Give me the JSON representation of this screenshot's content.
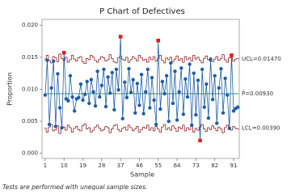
{
  "chart_data": {
    "type": "p-chart",
    "title": "P Chart of Defectives",
    "x_label": "Sample",
    "y_label": "Proportion",
    "footnote": "Tests are performed with unequal sample sizes.",
    "x": [
      1,
      2,
      3,
      4,
      5,
      6,
      7,
      8,
      9,
      10,
      11,
      12,
      13,
      14,
      15,
      16,
      17,
      18,
      19,
      20,
      21,
      22,
      23,
      24,
      25,
      26,
      27,
      28,
      29,
      30,
      31,
      32,
      33,
      34,
      35,
      36,
      37,
      38,
      39,
      40,
      41,
      42,
      43,
      44,
      45,
      46,
      47,
      48,
      49,
      50,
      51,
      52,
      53,
      54,
      55,
      56,
      57,
      58,
      59,
      60,
      61,
      62,
      63,
      64,
      65,
      66,
      67,
      68,
      69,
      70,
      71,
      72,
      73,
      74,
      75,
      76,
      77,
      78,
      79,
      80,
      81,
      82,
      83,
      84,
      85,
      86,
      87,
      88,
      89,
      90,
      91,
      92,
      93
    ],
    "values": [
      0.0091,
      0.0145,
      0.0045,
      0.0102,
      0.0144,
      0.0042,
      0.0124,
      0.0071,
      0.004,
      0.0157,
      0.0085,
      0.0082,
      0.0121,
      0.0088,
      0.0066,
      0.0085,
      0.0087,
      0.0108,
      0.0083,
      0.0092,
      0.0112,
      0.0078,
      0.0115,
      0.0096,
      0.0074,
      0.0128,
      0.0088,
      0.0106,
      0.0131,
      0.0073,
      0.0119,
      0.0094,
      0.0126,
      0.0068,
      0.0131,
      0.0099,
      0.0182,
      0.0054,
      0.0111,
      0.0087,
      0.0132,
      0.0095,
      0.0115,
      0.0063,
      0.0109,
      0.0075,
      0.0123,
      0.0062,
      0.0096,
      0.0131,
      0.0071,
      0.0118,
      0.0083,
      0.0045,
      0.0176,
      0.0069,
      0.0112,
      0.0093,
      0.0121,
      0.005,
      0.0141,
      0.0078,
      0.0128,
      0.0052,
      0.0096,
      0.0133,
      0.0061,
      0.0116,
      0.0088,
      0.0139,
      0.0044,
      0.0125,
      0.006,
      0.0114,
      0.002,
      0.0131,
      0.0072,
      0.0108,
      0.0055,
      0.0146,
      0.0084,
      0.0121,
      0.0047,
      0.0102,
      0.0132,
      0.0063,
      0.0117,
      0.0091,
      0.0039,
      0.0153,
      0.0066,
      0.007,
      0.0072
    ],
    "ucl": [
      0.0147,
      0.0153,
      0.0145,
      0.0141,
      0.0151,
      0.0149,
      0.0143,
      0.0155,
      0.0148,
      0.0145,
      0.015,
      0.0142,
      0.0146,
      0.0153,
      0.0147,
      0.0144,
      0.0149,
      0.0151,
      0.0143,
      0.014,
      0.0148,
      0.0146,
      0.0153,
      0.015,
      0.0145,
      0.0142,
      0.0147,
      0.0151,
      0.0149,
      0.0144,
      0.0146,
      0.0154,
      0.0148,
      0.0143,
      0.0141,
      0.0149,
      0.0152,
      0.0147,
      0.0145,
      0.015,
      0.0142,
      0.0146,
      0.0151,
      0.0148,
      0.0144,
      0.0153,
      0.0149,
      0.0145,
      0.0147,
      0.0142,
      0.015,
      0.0146,
      0.0151,
      0.0144,
      0.0148,
      0.0153,
      0.0145,
      0.0141,
      0.0149,
      0.0146,
      0.015,
      0.0143,
      0.0147,
      0.0152,
      0.0145,
      0.0148,
      0.0142,
      0.0151,
      0.0146,
      0.0149,
      0.0144,
      0.0153,
      0.0147,
      0.015,
      0.0145,
      0.0141,
      0.0148,
      0.0152,
      0.0146,
      0.0149,
      0.0143,
      0.0147,
      0.0151,
      0.0145,
      0.0148,
      0.0154,
      0.0146,
      0.0142,
      0.0149,
      0.015,
      0.0144,
      0.0147,
      0.0148
    ],
    "lcl": [
      0.0039,
      0.0033,
      0.0041,
      0.0045,
      0.0035,
      0.0037,
      0.0043,
      0.0031,
      0.0038,
      0.0041,
      0.0036,
      0.0044,
      0.004,
      0.0033,
      0.0039,
      0.0042,
      0.0037,
      0.0035,
      0.0043,
      0.0046,
      0.0038,
      0.004,
      0.0033,
      0.0036,
      0.0041,
      0.0044,
      0.0039,
      0.0035,
      0.0037,
      0.0042,
      0.004,
      0.0032,
      0.0038,
      0.0043,
      0.0045,
      0.0037,
      0.0034,
      0.0039,
      0.0041,
      0.0036,
      0.0044,
      0.004,
      0.0035,
      0.0038,
      0.0042,
      0.0033,
      0.0037,
      0.0041,
      0.0039,
      0.0044,
      0.0036,
      0.004,
      0.0035,
      0.0042,
      0.0038,
      0.0033,
      0.0041,
      0.0045,
      0.0037,
      0.004,
      0.0036,
      0.0043,
      0.0039,
      0.0034,
      0.0041,
      0.0038,
      0.0044,
      0.0035,
      0.004,
      0.0037,
      0.0042,
      0.0033,
      0.0039,
      0.0036,
      0.0041,
      0.0045,
      0.0038,
      0.0034,
      0.004,
      0.0037,
      0.0043,
      0.0039,
      0.0035,
      0.0041,
      0.0038,
      0.0032,
      0.004,
      0.0044,
      0.0037,
      0.0036,
      0.0042,
      0.0039,
      0.0038
    ],
    "center": 0.0093,
    "limit_labels": [
      {
        "value": 0.0147,
        "label": "UCL=0.01470"
      },
      {
        "value": 0.0093,
        "label": "P̄=0.00930"
      },
      {
        "value": 0.0039,
        "label": "LCL=0.00390"
      }
    ],
    "flagged_samples": [
      10,
      37,
      55,
      75,
      90
    ],
    "color": "#1f5ea8",
    "limit_color": "#8c1c1c",
    "center_color": "#2e8b57",
    "flag_color": "#e01f1f",
    "xlim": [
      -0.5,
      93.7
    ],
    "xticks": [
      1,
      10,
      19,
      28,
      37,
      46,
      55,
      64,
      73,
      82,
      91
    ],
    "ylim": [
      -0.0008,
      0.0209
    ],
    "yticks": [
      {
        "value": 0,
        "label": "0.000"
      },
      {
        "value": 0.005,
        "label": "0.005"
      },
      {
        "value": 0.01,
        "label": "0.010"
      },
      {
        "value": 0.015,
        "label": "0.015"
      },
      {
        "value": 0.02,
        "label": "0.020"
      }
    ]
  }
}
